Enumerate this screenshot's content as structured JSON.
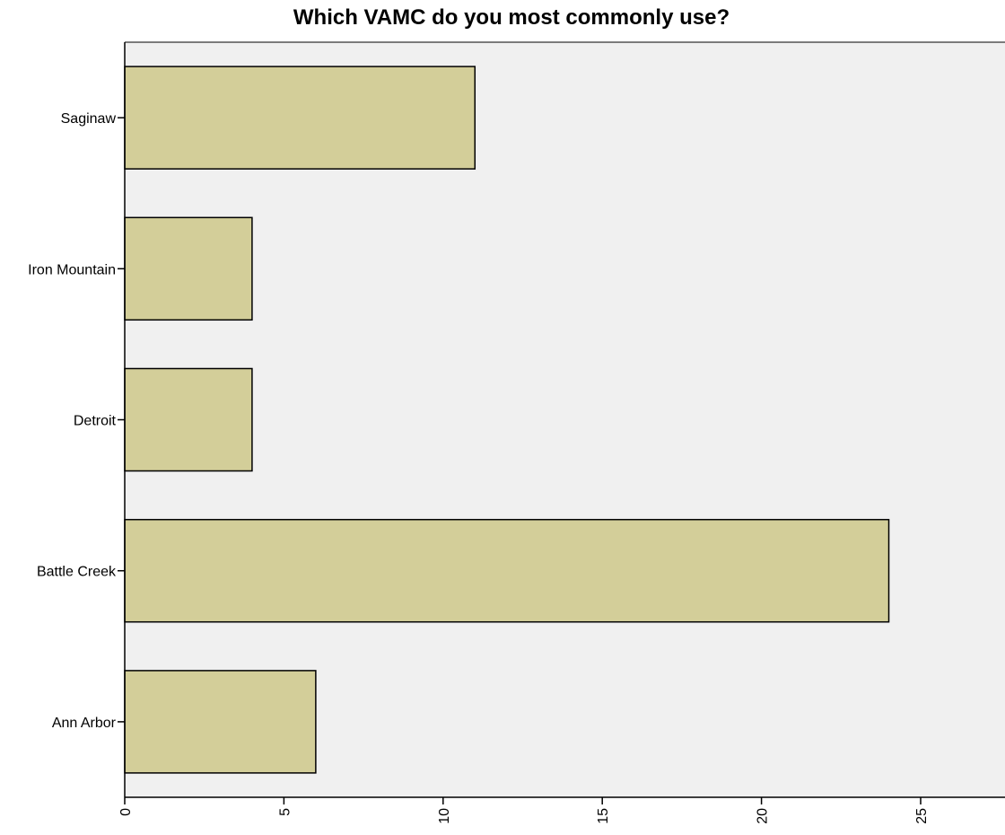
{
  "chart_data": {
    "type": "bar",
    "orientation": "horizontal",
    "title": "Which VAMC do you most commonly use?",
    "xlabel": "",
    "ylabel": "",
    "categories": [
      "Saginaw",
      "Iron Mountain",
      "Detroit",
      "Battle Creek",
      "Ann Arbor"
    ],
    "values": [
      11,
      4,
      4,
      24,
      6
    ],
    "xlim": [
      0,
      27.5
    ],
    "x_ticks": [
      "0",
      "5",
      "10",
      "15",
      "20",
      "25"
    ],
    "grid": false,
    "colors": {
      "bar_fill": "#d3ce99",
      "bar_stroke": "#000000",
      "plot_background": "#f0f0f0",
      "axis": "#000000"
    }
  }
}
